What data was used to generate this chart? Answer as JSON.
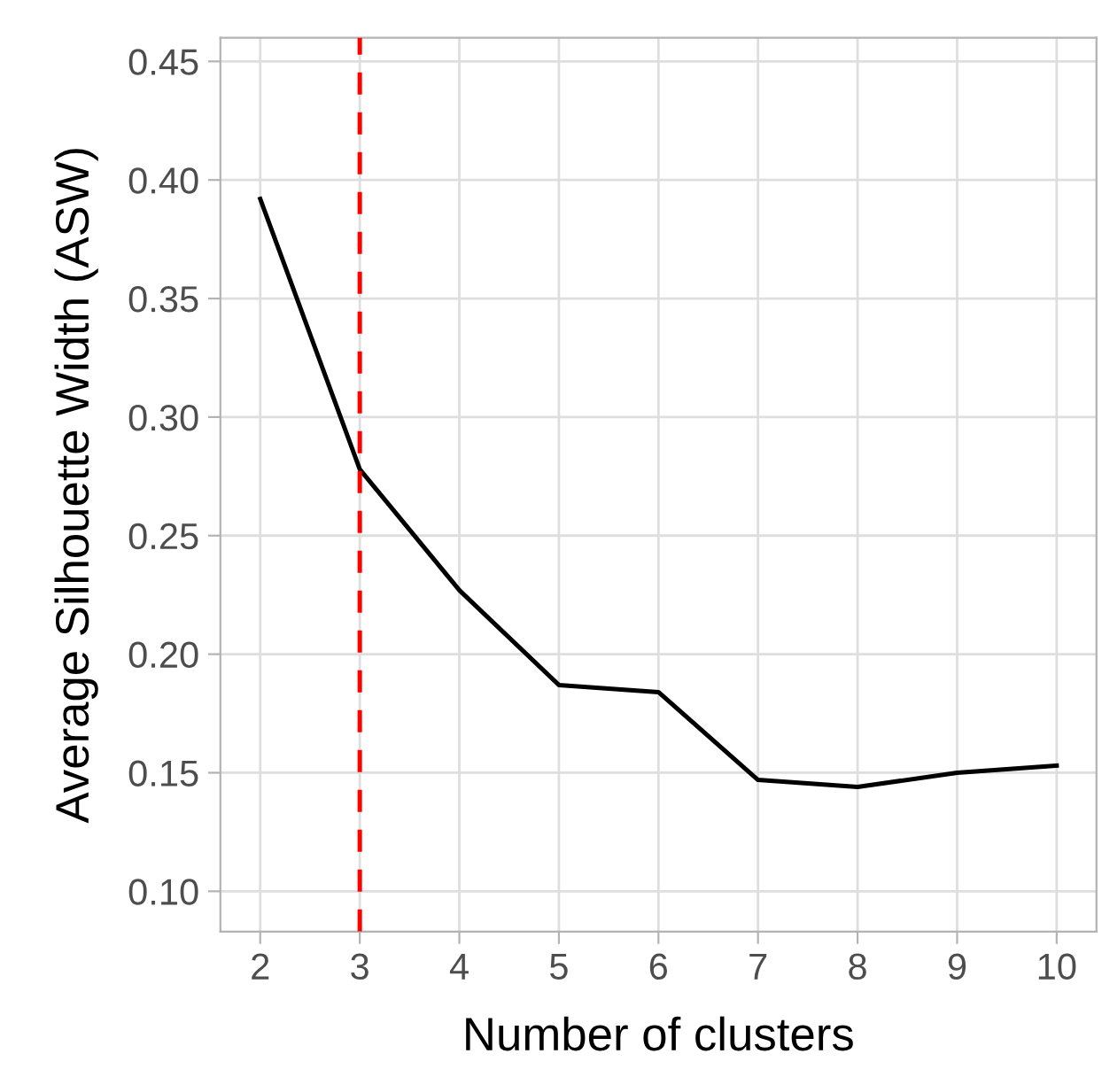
{
  "chart_data": {
    "type": "line",
    "xlabel": "Number of clusters",
    "ylabel": "Average Silhouette Width (ASW)",
    "x": [
      2,
      3,
      4,
      5,
      6,
      7,
      8,
      9,
      10
    ],
    "series": [
      {
        "color": "#000000",
        "values": [
          0.392,
          0.278,
          0.227,
          0.187,
          0.184,
          0.147,
          0.144,
          0.15,
          0.153
        ]
      }
    ],
    "xlim": [
      1.6,
      10.4
    ],
    "xticks": [
      2,
      3,
      4,
      5,
      6,
      7,
      8,
      9,
      10
    ],
    "ylim": [
      0.083,
      0.46
    ],
    "yticks": [
      {
        "value": 0.1,
        "label": "0.10"
      },
      0.15,
      {
        "value": 0.2,
        "label": "0.20"
      },
      0.25,
      {
        "value": 0.3,
        "label": "0.30"
      },
      0.35,
      {
        "value": 0.4,
        "label": "0.40"
      },
      0.45
    ],
    "ref_lines": [
      {
        "axis": "x",
        "value": 3,
        "color": "#ff0000",
        "line_style": "dashed"
      }
    ],
    "grid": true,
    "legend": false,
    "marker": "none",
    "line_style": "solid"
  }
}
